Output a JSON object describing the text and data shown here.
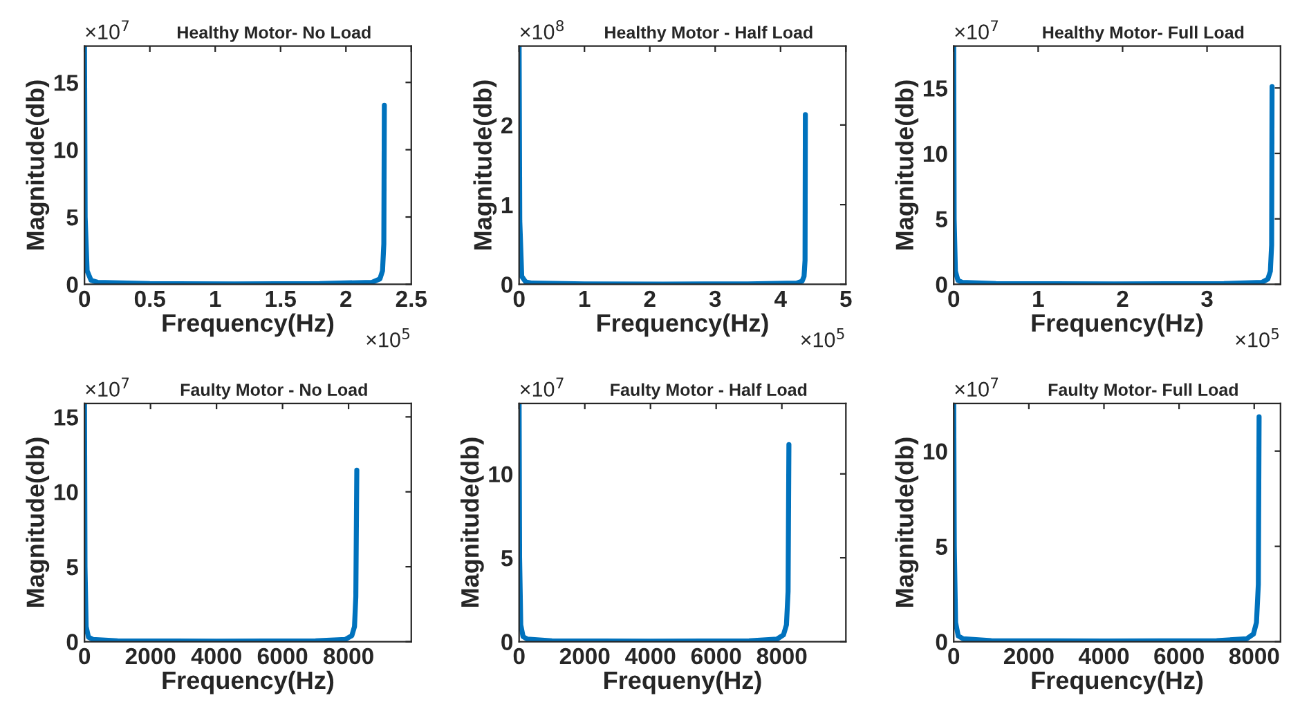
{
  "chart_data": [
    {
      "type": "line",
      "title": "Healthy Motor- No Load",
      "xlabel": "Frequency(Hz)",
      "ylabel": "Magnitude(db)",
      "annotations": [
        "×10$^{7}$",
        "×10$^{5}$"
      ],
      "xlim": [
        0,
        2.5
      ],
      "xticks": [
        0,
        0.5,
        1,
        1.5,
        2,
        2.5
      ],
      "ylim": [
        0,
        17.7
      ],
      "yticks": [
        0,
        5,
        10,
        15
      ],
      "grid": false,
      "series": [
        {
          "color": "#0072bd",
          "x": [
            0,
            0.005,
            0.02,
            0.05,
            0.1,
            0.5,
            1.15,
            1.8,
            2.2,
            2.26,
            2.28,
            2.29,
            2.294
          ],
          "values": [
            17.7,
            5,
            1,
            0.3,
            0.15,
            0.05,
            0.03,
            0.05,
            0.15,
            0.4,
            1,
            3,
            13.3
          ]
        }
      ]
    },
    {
      "type": "line",
      "title": "Healthy Motor - Half Load",
      "xlabel": "Frequency(Hz)",
      "ylabel": "Magnitude(db)",
      "annotations": [
        "×10$^{8}$",
        "×10$^{5}$"
      ],
      "xlim": [
        0,
        5
      ],
      "xticks": [
        0,
        1,
        2,
        3,
        4,
        5
      ],
      "ylim": [
        0,
        2.99
      ],
      "yticks": [
        0,
        1,
        2
      ],
      "grid": false,
      "series": [
        {
          "color": "#0072bd",
          "x": [
            0,
            0.01,
            0.04,
            0.1,
            0.2,
            1,
            2.2,
            3.5,
            4.25,
            4.33,
            4.36,
            4.375,
            4.38
          ],
          "values": [
            2.99,
            0.8,
            0.1,
            0.03,
            0.015,
            0.005,
            0.003,
            0.005,
            0.015,
            0.04,
            0.1,
            0.3,
            2.13
          ]
        }
      ]
    },
    {
      "type": "line",
      "title": "Healthy Motor- Full Load",
      "xlabel": "Frequency(Hz)",
      "ylabel": "Magnitude(db)",
      "annotations": [
        "×10$^{7}$",
        "×10$^{5}$"
      ],
      "xlim": [
        0,
        3.87
      ],
      "xticks": [
        0,
        1,
        2,
        3
      ],
      "ylim": [
        0,
        18.2
      ],
      "yticks": [
        0,
        5,
        10,
        15
      ],
      "grid": false,
      "series": [
        {
          "color": "#0072bd",
          "x": [
            0,
            0.005,
            0.02,
            0.05,
            0.1,
            0.5,
            1.9,
            3.2,
            3.65,
            3.72,
            3.75,
            3.765,
            3.77
          ],
          "values": [
            18.2,
            5,
            1,
            0.3,
            0.15,
            0.05,
            0.03,
            0.05,
            0.15,
            0.4,
            1,
            3,
            15.1
          ]
        }
      ]
    },
    {
      "type": "line",
      "title": "Faulty Motor - No Load",
      "xlabel": "Frequency(Hz)",
      "ylabel": "Magnitude(db)",
      "annotations": [
        "×10$^{7}$"
      ],
      "xlim": [
        0,
        9900
      ],
      "xticks": [
        0,
        2000,
        4000,
        6000,
        8000
      ],
      "ylim": [
        0,
        15.9
      ],
      "yticks": [
        0,
        5,
        10,
        15
      ],
      "grid": false,
      "series": [
        {
          "color": "#0072bd",
          "x": [
            0,
            15,
            50,
            120,
            250,
            1000,
            4000,
            7000,
            7900,
            8100,
            8180,
            8220,
            8250
          ],
          "values": [
            15.9,
            5,
            1,
            0.3,
            0.15,
            0.05,
            0.03,
            0.05,
            0.15,
            0.4,
            1,
            3,
            11.45
          ]
        }
      ]
    },
    {
      "type": "line",
      "title": "Faulty Motor - Half Load",
      "xlabel": "Frequeny(Hz)",
      "ylabel": "Magnitude(db)",
      "annotations": [
        "×10$^{7}$"
      ],
      "xlim": [
        0,
        9950
      ],
      "xticks": [
        0,
        2000,
        4000,
        6000,
        8000
      ],
      "ylim": [
        0,
        14.2
      ],
      "yticks": [
        0,
        5,
        10
      ],
      "grid": false,
      "series": [
        {
          "color": "#0072bd",
          "x": [
            0,
            15,
            50,
            120,
            250,
            1000,
            4000,
            7000,
            7850,
            8050,
            8140,
            8190,
            8215
          ],
          "values": [
            14.2,
            5,
            1,
            0.3,
            0.15,
            0.05,
            0.03,
            0.05,
            0.15,
            0.4,
            1,
            3,
            11.75
          ]
        }
      ]
    },
    {
      "type": "line",
      "title": "Faulty Motor- Full Load",
      "xlabel": "Frequency(Hz)",
      "ylabel": "Magnitude(db)",
      "annotations": [
        "×10$^{7}$"
      ],
      "xlim": [
        0,
        8700
      ],
      "xticks": [
        0,
        2000,
        4000,
        6000,
        8000
      ],
      "ylim": [
        0,
        12.5
      ],
      "yticks": [
        0,
        5,
        10
      ],
      "grid": false,
      "series": [
        {
          "color": "#0072bd",
          "x": [
            0,
            15,
            50,
            120,
            250,
            1000,
            4000,
            7000,
            7800,
            7980,
            8060,
            8110,
            8130
          ],
          "values": [
            12.5,
            5,
            1,
            0.3,
            0.15,
            0.05,
            0.03,
            0.05,
            0.15,
            0.4,
            1,
            3,
            11.8
          ]
        }
      ]
    }
  ]
}
